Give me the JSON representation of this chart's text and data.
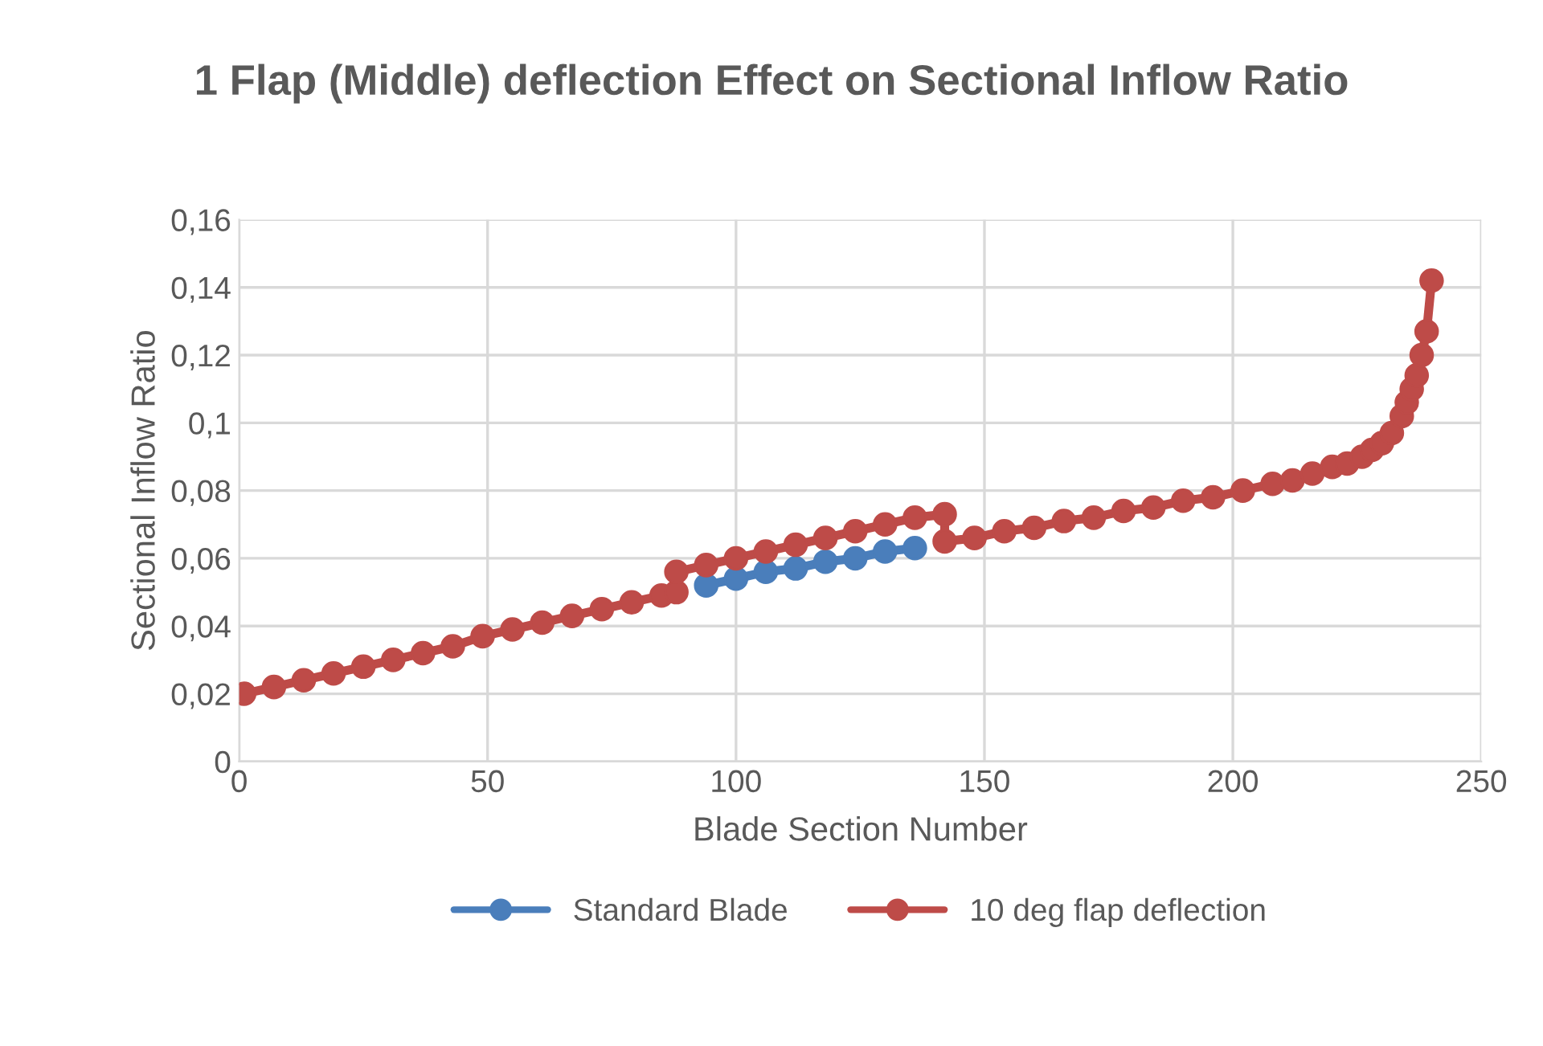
{
  "chart_data": {
    "type": "line",
    "title": "1 Flap (Middle) deflection Effect on Sectional Inflow Ratio",
    "xlabel": "Blade Section Number",
    "ylabel": "Sectional Inflow Ratio",
    "xlim": [
      0,
      250
    ],
    "xticks": [
      0,
      50,
      100,
      150,
      200,
      250
    ],
    "ylim": [
      0,
      0.16
    ],
    "yticks": [
      {
        "value": 0,
        "label": "0"
      },
      {
        "value": 0.02,
        "label": "0,02"
      },
      {
        "value": 0.04,
        "label": "0,04"
      },
      {
        "value": 0.06,
        "label": "0,06"
      },
      {
        "value": 0.08,
        "label": "0,08"
      },
      {
        "value": 0.1,
        "label": "0,1"
      },
      {
        "value": 0.12,
        "label": "0,12"
      },
      {
        "value": 0.14,
        "label": "0,14"
      },
      {
        "value": 0.16,
        "label": "0,16"
      }
    ],
    "grid": true,
    "legend": "bottom",
    "marker": "circle",
    "line_style": "solid",
    "series": [
      {
        "name": "Standard Blade",
        "color": "#4a7ebb",
        "x": [
          94,
          100,
          106,
          112,
          118,
          124,
          130,
          136
        ],
        "values": [
          0.052,
          0.054,
          0.056,
          0.057,
          0.059,
          0.06,
          0.062,
          0.063
        ]
      },
      {
        "name": "10 deg flap deflection",
        "color": "#be4b48",
        "x": [
          1,
          7,
          13,
          19,
          25,
          31,
          37,
          43,
          49,
          55,
          61,
          67,
          73,
          79,
          85,
          88,
          88,
          94,
          100,
          106,
          112,
          118,
          124,
          130,
          136,
          142,
          142,
          148,
          154,
          160,
          166,
          172,
          178,
          184,
          190,
          196,
          202,
          208,
          212,
          216,
          220,
          223,
          226,
          228,
          230,
          232,
          234,
          235,
          236,
          237,
          238,
          239,
          240
        ],
        "values": [
          0.02,
          0.022,
          0.024,
          0.026,
          0.028,
          0.03,
          0.032,
          0.034,
          0.037,
          0.039,
          0.041,
          0.043,
          0.045,
          0.047,
          0.049,
          0.05,
          0.056,
          0.058,
          0.06,
          0.062,
          0.064,
          0.066,
          0.068,
          0.07,
          0.072,
          0.073,
          0.065,
          0.066,
          0.068,
          0.069,
          0.071,
          0.072,
          0.074,
          0.075,
          0.077,
          0.078,
          0.08,
          0.082,
          0.083,
          0.085,
          0.087,
          0.088,
          0.09,
          0.092,
          0.094,
          0.097,
          0.102,
          0.106,
          0.11,
          0.114,
          0.12,
          0.127,
          0.142
        ]
      }
    ]
  }
}
